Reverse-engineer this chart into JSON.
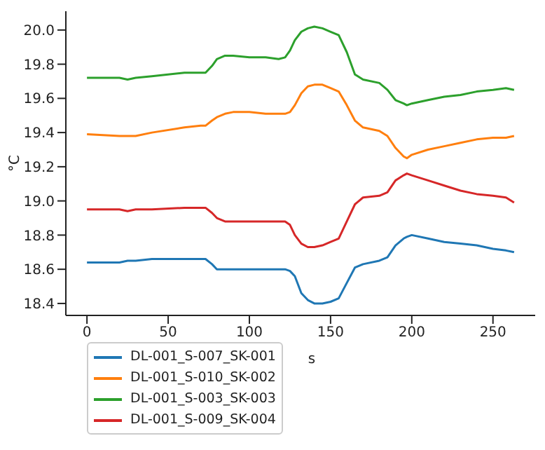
{
  "chart_data": {
    "type": "line",
    "xlabel": "s",
    "ylabel": "°C",
    "legend": "bottom",
    "x": [
      0,
      20,
      25,
      30,
      40,
      60,
      70,
      73,
      77,
      80,
      85,
      90,
      100,
      110,
      118,
      122,
      125,
      128,
      132,
      136,
      140,
      145,
      150,
      155,
      160,
      165,
      170,
      180,
      185,
      190,
      195,
      197,
      200,
      210,
      220,
      230,
      240,
      250,
      258,
      263
    ],
    "xlim": [
      -13,
      276
    ],
    "ylim": [
      18.33,
      20.11
    ],
    "xticks": [
      0,
      50,
      100,
      150,
      200,
      250
    ],
    "yticks": [
      18.4,
      18.6,
      18.8,
      {
        "value": 19,
        "label": "19.0"
      },
      19.2,
      19.4,
      19.6,
      19.8,
      {
        "value": 20,
        "label": "20.0"
      }
    ],
    "series": [
      {
        "name": "DL-001_S-007_SK-001",
        "color": "#1f77b4",
        "values": [
          18.64,
          18.64,
          18.65,
          18.65,
          18.66,
          18.66,
          18.66,
          18.66,
          18.63,
          18.6,
          18.6,
          18.6,
          18.6,
          18.6,
          18.6,
          18.6,
          18.59,
          18.56,
          18.46,
          18.42,
          18.4,
          18.4,
          18.41,
          18.43,
          18.52,
          18.61,
          18.63,
          18.65,
          18.67,
          18.74,
          18.78,
          18.79,
          18.8,
          18.78,
          18.76,
          18.75,
          18.74,
          18.72,
          18.71,
          18.7
        ]
      },
      {
        "name": "DL-001_S-010_SK-002",
        "color": "#ff7f0e",
        "values": [
          19.39,
          19.38,
          19.38,
          19.38,
          19.4,
          19.43,
          19.44,
          19.44,
          19.47,
          19.49,
          19.51,
          19.52,
          19.52,
          19.51,
          19.51,
          19.51,
          19.52,
          19.56,
          19.63,
          19.67,
          19.68,
          19.68,
          19.66,
          19.64,
          19.56,
          19.47,
          19.43,
          19.41,
          19.38,
          19.31,
          19.26,
          19.25,
          19.27,
          19.3,
          19.32,
          19.34,
          19.36,
          19.37,
          19.37,
          19.38
        ]
      },
      {
        "name": "DL-001_S-003_SK-003",
        "color": "#2ca02c",
        "values": [
          19.72,
          19.72,
          19.71,
          19.72,
          19.73,
          19.75,
          19.75,
          19.75,
          19.79,
          19.83,
          19.85,
          19.85,
          19.84,
          19.84,
          19.83,
          19.84,
          19.88,
          19.94,
          19.99,
          20.01,
          20.02,
          20.01,
          19.99,
          19.97,
          19.87,
          19.74,
          19.71,
          19.69,
          19.65,
          19.59,
          19.57,
          19.56,
          19.57,
          19.59,
          19.61,
          19.62,
          19.64,
          19.65,
          19.66,
          19.65
        ]
      },
      {
        "name": "DL-001_S-009_SK-004",
        "color": "#d62728",
        "values": [
          18.95,
          18.95,
          18.94,
          18.95,
          18.95,
          18.96,
          18.96,
          18.96,
          18.93,
          18.9,
          18.88,
          18.88,
          18.88,
          18.88,
          18.88,
          18.88,
          18.86,
          18.8,
          18.75,
          18.73,
          18.73,
          18.74,
          18.76,
          18.78,
          18.88,
          18.98,
          19.02,
          19.03,
          19.05,
          19.12,
          19.15,
          19.16,
          19.15,
          19.12,
          19.09,
          19.06,
          19.04,
          19.03,
          19.02,
          18.99
        ]
      }
    ]
  }
}
